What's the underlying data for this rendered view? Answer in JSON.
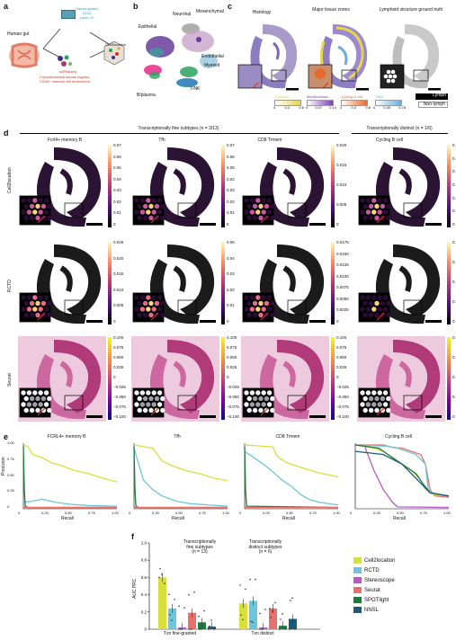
{
  "panel_letters": [
    "a",
    "b",
    "c",
    "d",
    "e",
    "f"
  ],
  "panel_a": {
    "human_gut": "Human gut",
    "visium_l1": "Visium spatial",
    "visium_l2": "(10x)",
    "visium_l3": "colon ×2",
    "scrna": "scRNAseq",
    "compr_l1": "Comprehensive across regions,",
    "compr_l2": "CD45+ immune cell enrichment",
    "cell2loc": "Cell2location"
  },
  "panel_b": {
    "labels": [
      "Neuronal",
      "Mesenchymal",
      "Epithelial",
      "Endothelial",
      "Myeloid",
      "B/plasma",
      "T/NK"
    ],
    "colors": {
      "neuronal": "#9b9b9b",
      "mesenchymal": "#c8a4c8",
      "epithelial": "#6a3d9a",
      "endothelial": "#9ecae1",
      "myeloid": "#2ca25f",
      "bplasma": "#e7298a",
      "tnk": "#1f78b4"
    }
  },
  "panel_c": {
    "titles": [
      "Histology",
      "Major tissue zones",
      "Lymphoid structure ground truth"
    ],
    "legend": [
      {
        "name": "Epithelial",
        "color": "#e8d44d",
        "ticks": [
          "0",
          "0.3",
          "0.6"
        ]
      },
      {
        "name": "Myofibroblast",
        "color": "#7b3fb0",
        "ticks": [
          "0",
          "0.07",
          "0.14"
        ]
      },
      {
        "name": "Cycling B cell",
        "color": "#e66c2c",
        "ticks": [
          "0",
          "0.3",
          "0.6"
        ]
      },
      {
        "name": "T/NK",
        "color": "#6baed6",
        "ticks": [
          "0",
          "0.39",
          "0.78"
        ]
      }
    ],
    "lymph": "Lymph",
    "nonlymph": "Non-lymph"
  },
  "panel_d": {
    "header_fine": "Transcriptionally fine subtypes (n = 3/13)",
    "header_distinct": "Transcriptionally distinct (n = 1/6)",
    "columns": [
      "Fcrl4+ memory B",
      "Tfh",
      "CD8 Trmem",
      "Cycling B cell"
    ],
    "rows": [
      "Cell2location",
      "RCTD",
      "Seurat"
    ],
    "colorbars": [
      [
        [
          "0.07",
          "0.06",
          "0.05",
          "0.04",
          "0.03",
          "0.02",
          "0.01",
          "0"
        ],
        [
          "0.07",
          "0.06",
          "0.05",
          "0.04",
          "0.03",
          "0.02",
          "0.01",
          "0"
        ],
        [
          "0.020",
          "0.015",
          "0.010",
          "0.005",
          "0"
        ],
        [
          "0.30",
          "0.25",
          "0.20",
          "0.15",
          "0.10",
          "0.05",
          "0"
        ]
      ],
      [
        [
          "0.025",
          "0.020",
          "0.015",
          "0.010",
          "0.005",
          "0"
        ],
        [
          "0.05",
          "0.04",
          "0.03",
          "0.02",
          "0.01",
          "0"
        ],
        [
          "0.0175",
          "0.0150",
          "0.0125",
          "0.0100",
          "0.0075",
          "0.0050",
          "0.0025",
          "0"
        ],
        [
          "0.4",
          "0.3",
          "0.2",
          "0.1",
          "0"
        ]
      ],
      [
        [
          "0.100",
          "0.075",
          "0.050",
          "0.025",
          "0",
          "−0.025",
          "−0.050",
          "−0.075",
          "−0.100"
        ],
        [
          "0.100",
          "0.075",
          "0.050",
          "0.025",
          "0",
          "−0.025",
          "−0.050",
          "−0.075",
          "−0.100"
        ],
        [
          "0.100",
          "0.075",
          "0.050",
          "0.025",
          "0",
          "−0.025",
          "−0.050",
          "−0.075",
          "−0.100"
        ],
        [
          "0.20",
          "0.15",
          "0.10",
          "0.05",
          "0"
        ]
      ]
    ]
  },
  "panel_e": {
    "titles": [
      "FCRL4+ memory B",
      "Tfh",
      "CD8 Trmem",
      "Cycling B cell"
    ],
    "xlabel": "Recall",
    "ylabel": "Precision",
    "xticks": [
      "0",
      "0.25",
      "0.50",
      "0.75",
      "1.00"
    ],
    "yticks": [
      "1.00",
      "0.75",
      "0.50",
      "0.25",
      "0"
    ]
  },
  "panel_f": {
    "ylabel": "AUC PRC",
    "yticks": [
      "1.0",
      "0.8",
      "0.6",
      "0.4",
      "0.2",
      "0"
    ],
    "group1_l1": "Transcriptionally",
    "group1_l2": "fine subtypes",
    "group1_l3": "(n = 13)",
    "group2_l1": "Transcriptionally",
    "group2_l2": "distinct subtypes",
    "group2_l3": "(n = 6)",
    "xcats": [
      "Txn fine-grained",
      "Txn distinct"
    ],
    "methods": [
      {
        "name": "Cell2location",
        "color": "#d9df3a"
      },
      {
        "name": "RCTD",
        "color": "#6cc6d9"
      },
      {
        "name": "Stereoscope",
        "color": "#b25cc4"
      },
      {
        "name": "Seurat",
        "color": "#e8716b"
      },
      {
        "name": "SPOTlight",
        "color": "#1f7a3d"
      },
      {
        "name": "NNSL",
        "color": "#1b5b7a"
      }
    ]
  },
  "chart_data": {
    "type": "bar",
    "categories": [
      "Txn fine-grained",
      "Txn distinct"
    ],
    "ylabel": "AUC PRC",
    "ylim": [
      0,
      1.0
    ],
    "series": [
      {
        "name": "Cell2location",
        "values": [
          0.6,
          0.3
        ]
      },
      {
        "name": "RCTD",
        "values": [
          0.24,
          0.33
        ]
      },
      {
        "name": "Stereoscope",
        "values": [
          0.02,
          0.02
        ]
      },
      {
        "name": "Seurat",
        "values": [
          0.19,
          0.24
        ]
      },
      {
        "name": "SPOTlight",
        "values": [
          0.08,
          0.04
        ]
      },
      {
        "name": "NNSL",
        "values": [
          0.03,
          0.12
        ]
      }
    ]
  }
}
